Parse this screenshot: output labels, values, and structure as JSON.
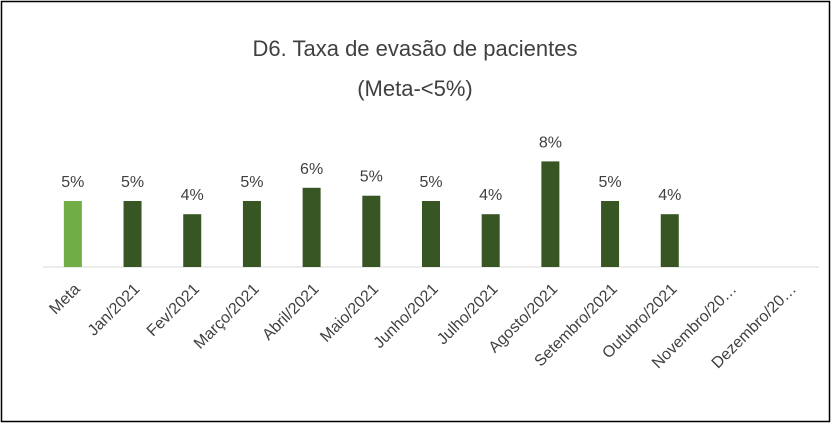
{
  "chart_data": {
    "type": "bar",
    "title": "D6. Taxa de evasão de pacientes",
    "subtitle": "(Meta-<5%)",
    "categories": [
      "Meta",
      "Jan/2021",
      "Fev/2021",
      "Março/2021",
      "Abril/2021",
      "Maio/2021",
      "Junho/2021",
      "Julho/2021",
      "Agosto/2021",
      "Setembro/2021",
      "Outubro/2021",
      "Novembro/20…",
      "Dezembro/20…"
    ],
    "values": [
      5,
      5,
      4,
      5,
      6,
      5.4,
      5,
      4,
      8,
      5,
      4,
      null,
      null
    ],
    "value_labels": [
      "5%",
      "5%",
      "4%",
      "5%",
      "6%",
      "5%",
      "5%",
      "4%",
      "8%",
      "5%",
      "4%",
      null,
      null
    ],
    "colors": [
      "#70ad47",
      "#375623",
      "#375623",
      "#375623",
      "#375623",
      "#375623",
      "#375623",
      "#375623",
      "#375623",
      "#375623",
      "#375623",
      "#375623",
      "#375623"
    ]
  }
}
